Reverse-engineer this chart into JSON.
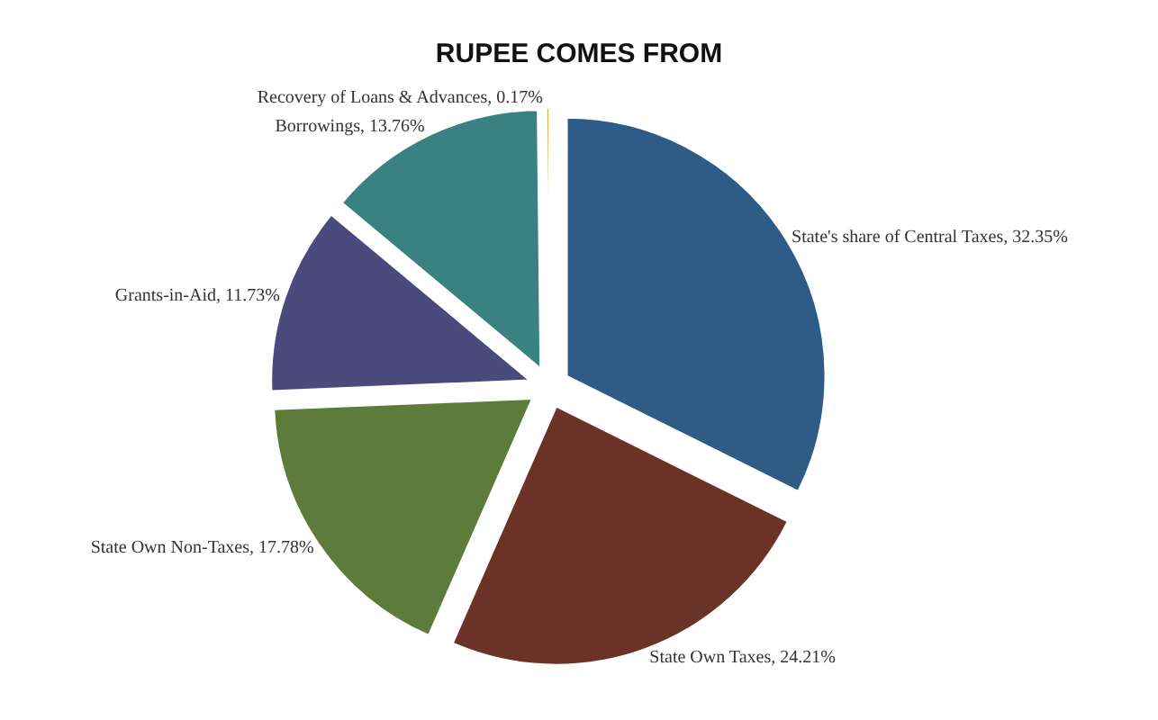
{
  "chart_data": {
    "type": "pie",
    "title": "RUPEE COMES FROM",
    "categories": [
      "State's share of Central Taxes",
      "State Own Taxes",
      "State Own Non-Taxes",
      "Grants-in-Aid",
      "Borrowings",
      "Recovery of Loans & Advances"
    ],
    "values": [
      32.35,
      24.21,
      17.78,
      11.73,
      13.76,
      0.17
    ],
    "value_labels": [
      "32.35%",
      "24.21%",
      "17.78%",
      "11.73%",
      "13.76%",
      "0.17%"
    ],
    "colors": [
      "#2f5c86",
      "#6b3328",
      "#5d7b3b",
      "#4b4a7c",
      "#3a8282",
      "#d9a030"
    ],
    "legend": false
  }
}
